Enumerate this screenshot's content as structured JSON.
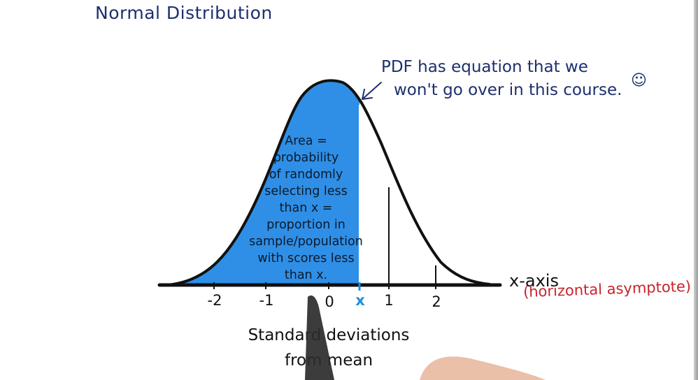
{
  "title": "Normal Distribution",
  "annotation": {
    "line1": "PDF has equation that we",
    "line2": "won't go over in this course.",
    "smiley": "\"̮"
  },
  "area_text": [
    "Area =",
    "probability",
    "of randomly",
    "selecting less",
    "than x =",
    "proportion in",
    "sample/population",
    "with scores less",
    "than x."
  ],
  "x_axis": {
    "label": "x-axis",
    "note": "(horizontal asymptote)",
    "ticks": [
      "-2",
      "-1",
      "0",
      "1",
      "2"
    ],
    "marker": "x"
  },
  "bottom_label": {
    "line1": "Standard deviations",
    "line2": "from mean"
  },
  "colors": {
    "fill": "#2f8fe6",
    "ink_blue": "#1d2f6e",
    "ink_red": "#c8252c",
    "marker_blue": "#1e8fd8"
  }
}
